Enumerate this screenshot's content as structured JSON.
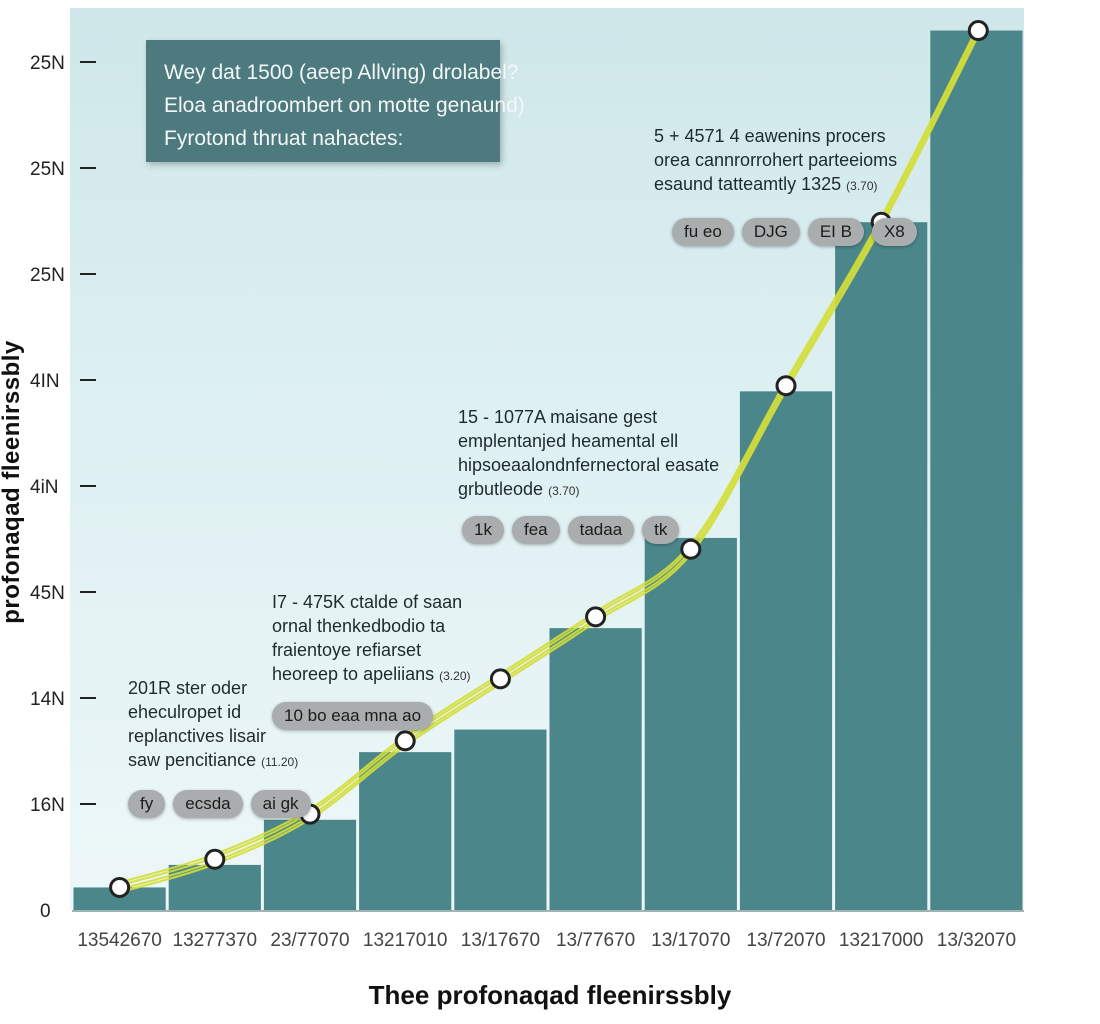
{
  "chart_data": {
    "type": "bar",
    "title": "Wey dat 1500 (aeep Allving) drolabel?",
    "subtitle_lines": [
      "Eloa anadroombert on motte genaund)",
      "Fyrotond thruat nahactes:"
    ],
    "xlabel": "Thee profonaqad fleenirssbly",
    "ylabel": "profonaqad fleenirssbly",
    "y_tick_labels": [
      "0",
      "16N",
      "14N",
      "45N",
      "4iN",
      "4IN",
      "25N",
      "25N",
      "25N"
    ],
    "categories": [
      "13542670",
      "13277370",
      "23/77070",
      "13217010",
      "13/17670",
      "13/77670",
      "13/17070",
      "13/72070",
      "13217000",
      "13/32070"
    ],
    "values": [
      2,
      4,
      8,
      14,
      16,
      25,
      33,
      46,
      61,
      78
    ],
    "line_values": [
      2,
      4.5,
      8.5,
      15,
      20.5,
      26,
      32,
      46.5,
      61,
      78
    ],
    "ylim": [
      0,
      80
    ],
    "colors": {
      "bar": "#4a868a",
      "line": "#d4de3a",
      "marker_fill": "#ffffff",
      "marker_stroke": "#222222"
    },
    "annotations": [
      {
        "lines": [
          "201R ster oder",
          "eheculropet id",
          "replanctives lisair",
          "saw pencitiance"
        ],
        "tag": "(11.20)",
        "pills": [
          "fy",
          "ecsda",
          "ai gk"
        ]
      },
      {
        "lines": [
          "I7 - 475K ctalde of saan",
          "ornal thenkedbodio ta",
          "fraientoye refiarset",
          "heoreep to apeliians"
        ],
        "tag": "(3.20)",
        "pills": [
          "10 bo eaa mna ao"
        ]
      },
      {
        "lines": [
          "15 - 1077A maisane gest",
          "emplentanjed heamental ell",
          "hipsoeaalondnfernectoral easate",
          "grbutleode"
        ],
        "tag": "(3.70)",
        "pills": [
          "1k",
          "fea",
          "tadaa",
          "tk"
        ]
      },
      {
        "lines": [
          "5 + 4571 4 eawenins procers",
          "orea cannrorrohert parteeioms",
          "esaund tatteamtly 1325"
        ],
        "tag": "(3.70)",
        "pills": [
          "fu eo",
          "DJG",
          "EI B",
          "X8"
        ]
      }
    ]
  }
}
